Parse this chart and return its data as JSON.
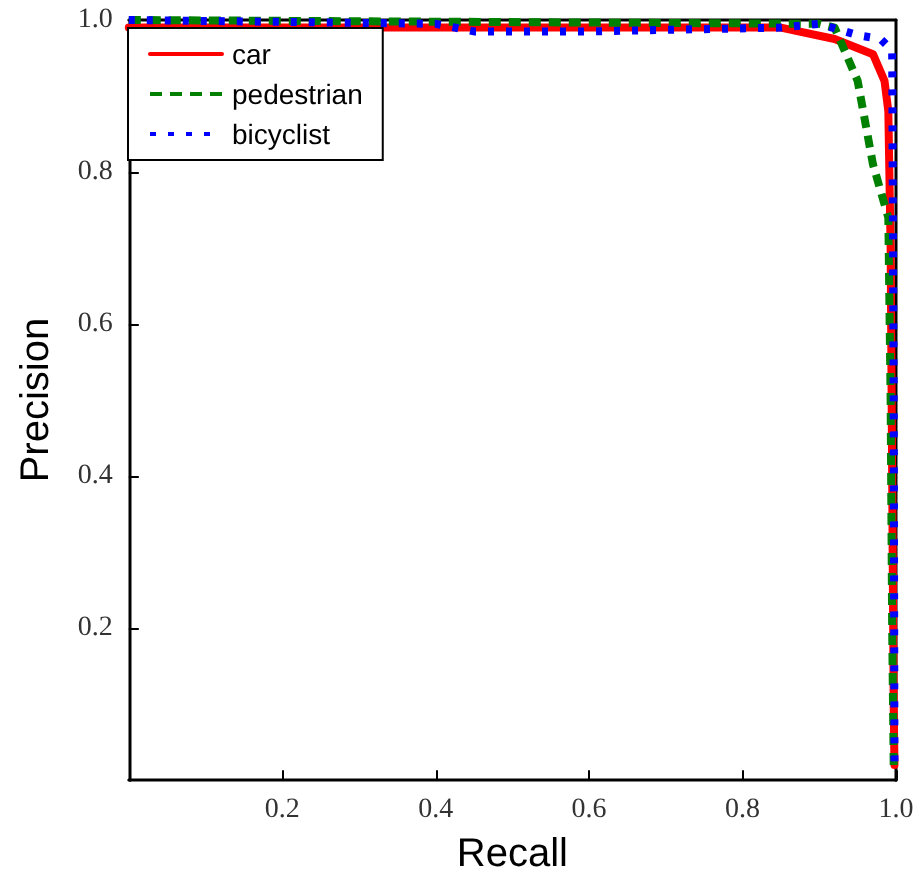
{
  "chart_data": {
    "type": "line",
    "xlabel": "Recall",
    "ylabel": "Precision",
    "xlim": [
      0,
      1
    ],
    "ylim": [
      0,
      1
    ],
    "xticks": [
      0.2,
      0.4,
      0.6,
      0.8,
      {
        "value": 1,
        "label": "1.0"
      }
    ],
    "yticks": [
      0.2,
      0.4,
      0.6,
      0.8,
      {
        "value": 1,
        "label": "1.0"
      }
    ],
    "grid": false,
    "legend": "top left",
    "marker": "none",
    "series": [
      {
        "name": "car",
        "color": "#ff0000",
        "line_style": "solid",
        "x": [
          0,
          0.85,
          0.92,
          0.97,
          0.985,
          0.99,
          0.993,
          0.995,
          0.997,
          0.998
        ],
        "values": [
          0.99,
          0.99,
          0.975,
          0.955,
          0.92,
          0.88,
          0.7,
          0.4,
          0.1,
          0.02
        ]
      },
      {
        "name": "pedestrian",
        "color": "#008000",
        "line_style": "dashed",
        "x": [
          0,
          0.9,
          0.92,
          0.95,
          0.97,
          0.99,
          0.993,
          0.995,
          0.997
        ],
        "values": [
          1.0,
          0.995,
          0.99,
          0.92,
          0.81,
          0.74,
          0.5,
          0.2,
          0.02
        ]
      },
      {
        "name": "bicyclist",
        "color": "#0000ff",
        "line_style": "dotted",
        "x": [
          0,
          0.4,
          0.45,
          0.6,
          0.85,
          0.9,
          0.95,
          0.98,
          0.995,
          0.997,
          0.998
        ],
        "values": [
          1.0,
          0.995,
          0.985,
          0.985,
          0.99,
          0.995,
          0.98,
          0.975,
          0.96,
          0.5,
          0.02
        ]
      }
    ]
  }
}
